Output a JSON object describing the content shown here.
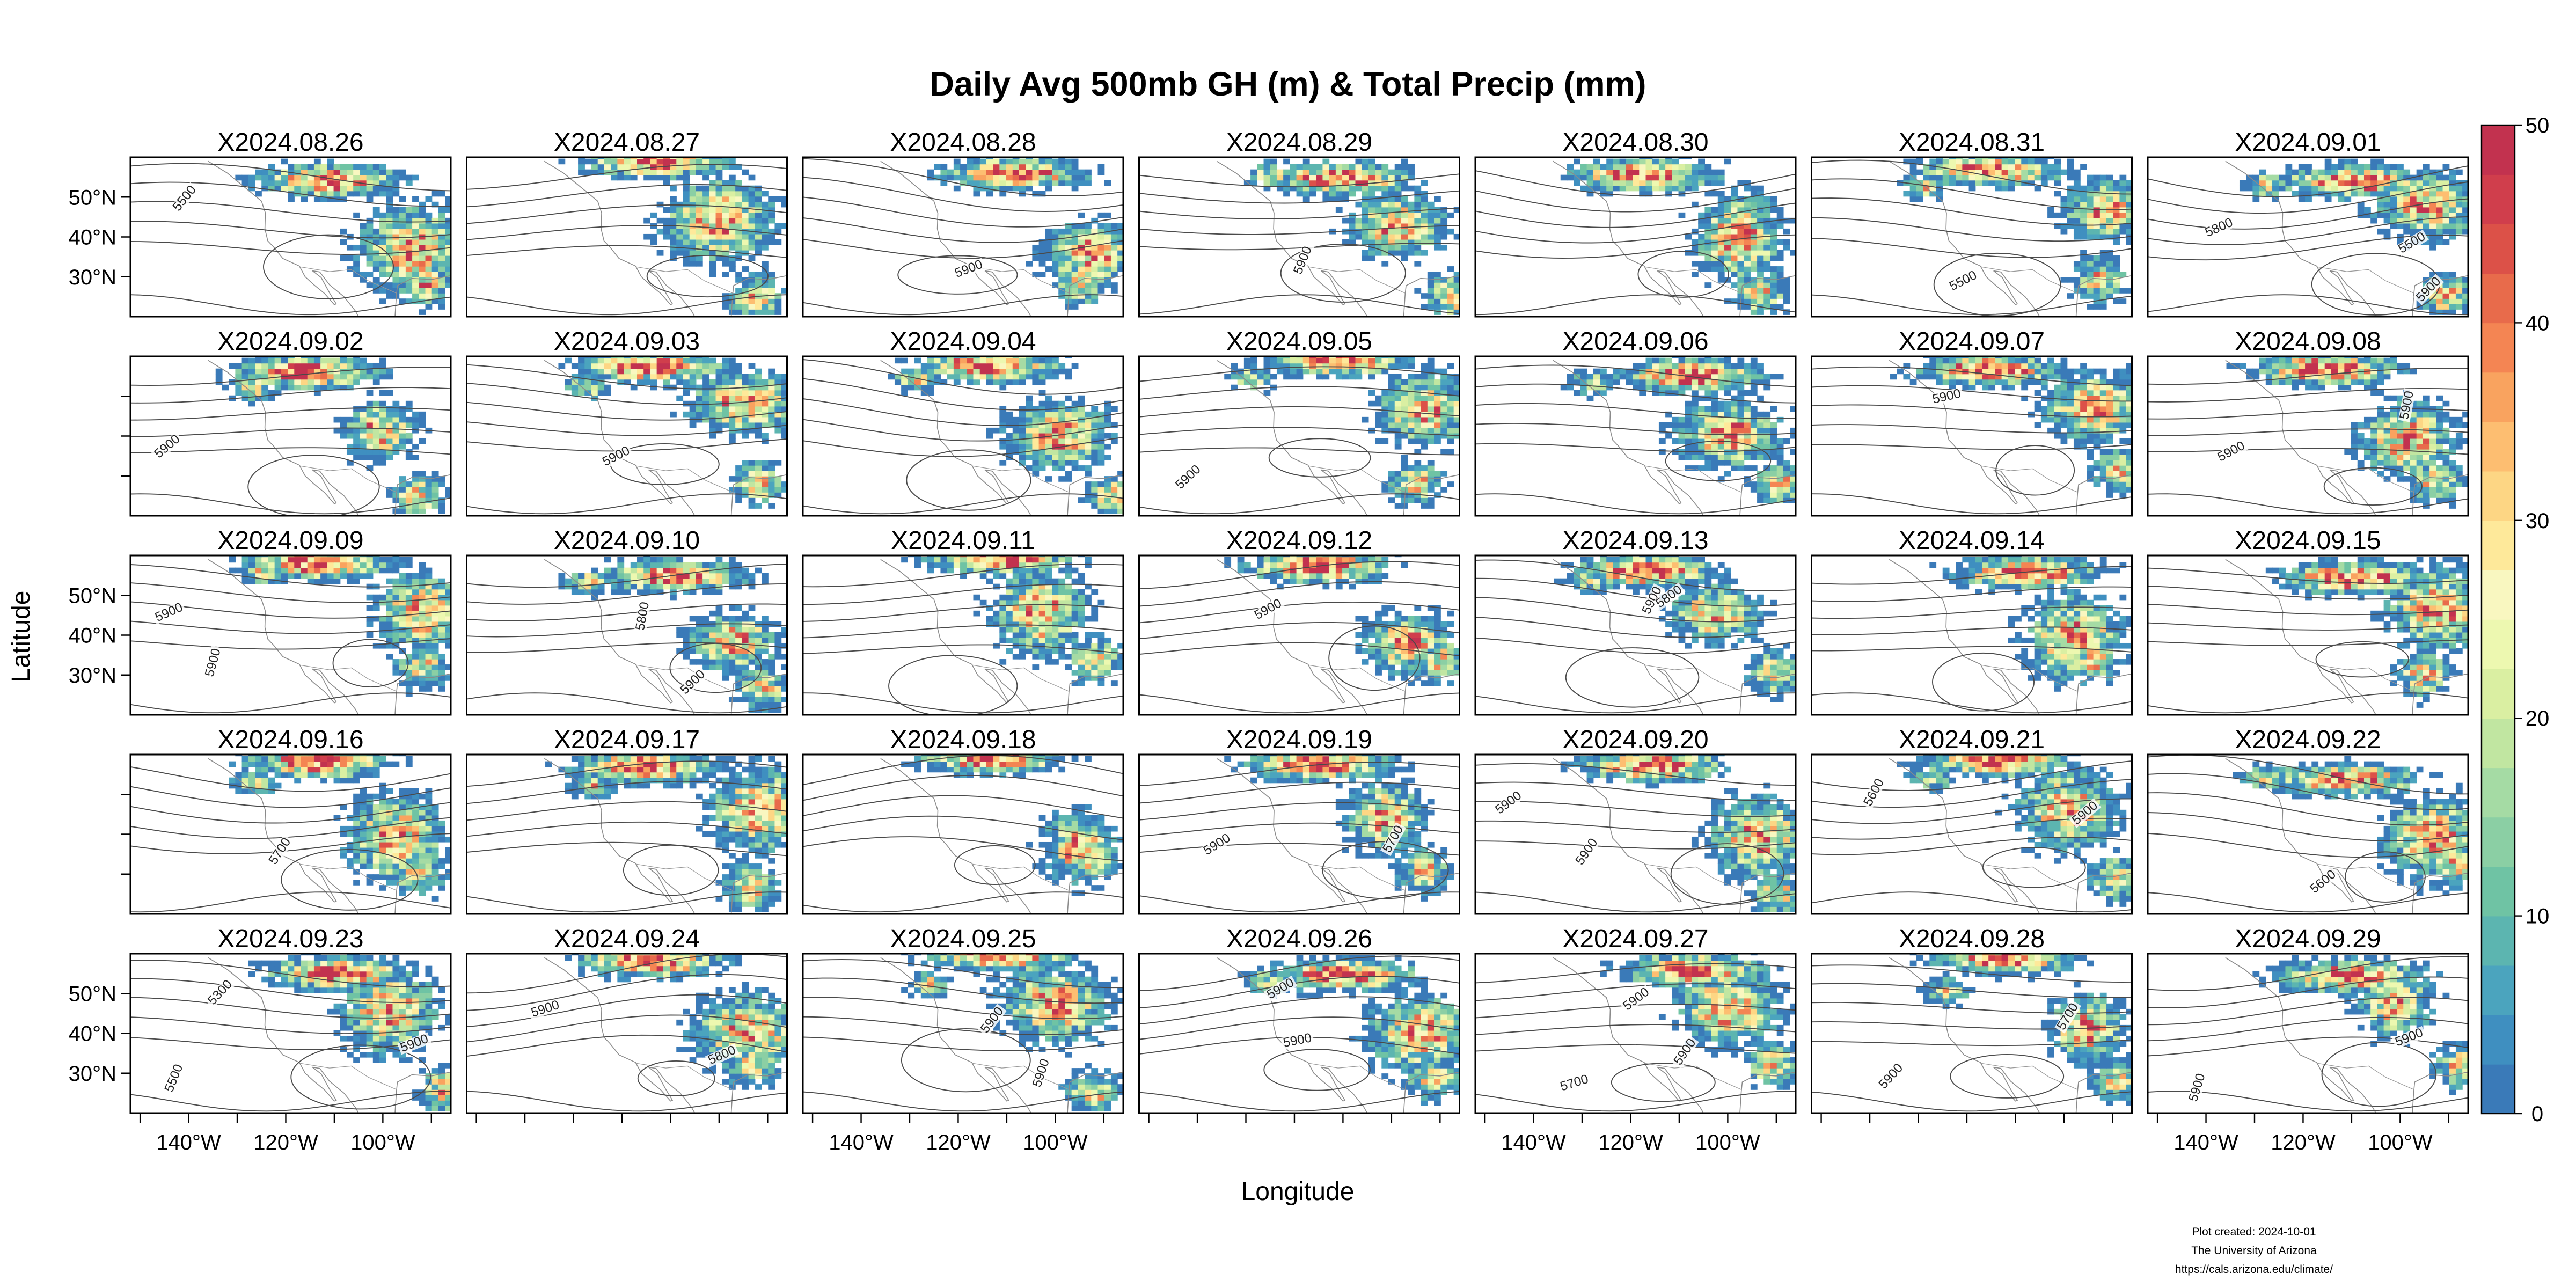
{
  "chart_data": {
    "type": "heatmap",
    "title": "Daily Avg 500mb GH (m) & Total Precip (mm)",
    "xlabel": "Longitude",
    "ylabel": "Latitude",
    "layout": {
      "rows": 5,
      "cols": 7
    },
    "panels": [
      "X2024.08.26",
      "X2024.08.27",
      "X2024.08.28",
      "X2024.08.29",
      "X2024.08.30",
      "X2024.08.31",
      "X2024.09.01",
      "X2024.09.02",
      "X2024.09.03",
      "X2024.09.04",
      "X2024.09.05",
      "X2024.09.06",
      "X2024.09.07",
      "X2024.09.08",
      "X2024.09.09",
      "X2024.09.10",
      "X2024.09.11",
      "X2024.09.12",
      "X2024.09.13",
      "X2024.09.14",
      "X2024.09.15",
      "X2024.09.16",
      "X2024.09.17",
      "X2024.09.18",
      "X2024.09.19",
      "X2024.09.20",
      "X2024.09.21",
      "X2024.09.22",
      "X2024.09.23",
      "X2024.09.24",
      "X2024.09.25",
      "X2024.09.26",
      "X2024.09.27",
      "X2024.09.28",
      "X2024.09.29"
    ],
    "x_ticks": [
      {
        "value": -140,
        "label": "140°W"
      },
      {
        "value": -120,
        "label": "120°W"
      },
      {
        "value": -100,
        "label": "100°W"
      }
    ],
    "y_ticks": [
      {
        "value": 50,
        "label": "50°N"
      },
      {
        "value": 40,
        "label": "40°N"
      },
      {
        "value": 30,
        "label": "30°N"
      }
    ],
    "xlim": [
      -152,
      -86
    ],
    "ylim": [
      20,
      60
    ],
    "x_label_cols": [
      0,
      2,
      4,
      6
    ],
    "y_label_rows": [
      0,
      2,
      4
    ],
    "colorbar": {
      "min": 0,
      "max": 50,
      "ticks": [
        0,
        10,
        20,
        30,
        40,
        50
      ],
      "colors": [
        "#3a7ab8",
        "#3f8fc0",
        "#4ba4be",
        "#5cb5b0",
        "#6fc3a4",
        "#8bcfa4",
        "#a5dba4",
        "#c1e6a1",
        "#daefa2",
        "#edf8b0",
        "#f9f7c0",
        "#fee99a",
        "#fdd684",
        "#fdbe71",
        "#f9a35f",
        "#f48553",
        "#e86b4b",
        "#dc5148",
        "#d03e4c",
        "#c2324f"
      ]
    },
    "contour_labels": {
      "X2024.08.26": [
        "5500"
      ],
      "X2024.08.28": [
        "5900"
      ],
      "X2024.08.29": [
        "5900"
      ],
      "X2024.08.31": [
        "5500"
      ],
      "X2024.09.01": [
        "5800",
        "5900",
        "5500"
      ],
      "X2024.09.02": [
        "5900"
      ],
      "X2024.09.03": [
        "5900"
      ],
      "X2024.09.05": [
        "5900"
      ],
      "X2024.09.07": [
        "5900"
      ],
      "X2024.09.08": [
        "5900",
        "5900"
      ],
      "X2024.09.09": [
        "5900",
        "5900"
      ],
      "X2024.09.10": [
        "5800",
        "5900"
      ],
      "X2024.09.12": [
        "5900"
      ],
      "X2024.09.13": [
        "5900",
        "5800"
      ],
      "X2024.09.16": [
        "5700"
      ],
      "X2024.09.19": [
        "5900",
        "5700"
      ],
      "X2024.09.20": [
        "5900",
        "5900"
      ],
      "X2024.09.21": [
        "5600",
        "5900"
      ],
      "X2024.09.22": [
        "5600"
      ],
      "X2024.09.23": [
        "5300",
        "5500",
        "5900"
      ],
      "X2024.09.24": [
        "5900",
        "5800"
      ],
      "X2024.09.25": [
        "5900",
        "5900"
      ],
      "X2024.09.26": [
        "5900",
        "5900"
      ],
      "X2024.09.27": [
        "5900",
        "5900",
        "5700"
      ],
      "X2024.09.28": [
        "5900",
        "5700"
      ],
      "X2024.09.29": [
        "5900",
        "5900"
      ]
    }
  },
  "footer": {
    "created": "Plot created: 2024-10-01",
    "org": "The University of Arizona",
    "url": "https://cals.arizona.edu/climate/"
  }
}
